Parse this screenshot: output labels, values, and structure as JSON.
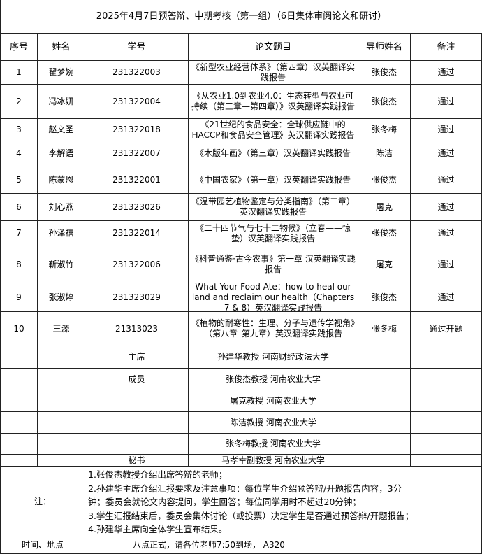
{
  "title": "2025年4月7日预答辩、中期考核（第一组）（6日集体审阅论文和研讨）",
  "header": [
    "序号",
    "姓名",
    "学号",
    "论文题目",
    "导师姓名",
    "备注"
  ],
  "rows": [
    [
      "1",
      "翟梦婉",
      "231322003",
      "《新型农业经营体系》（第四章）汉英翻译实践报告",
      "张俊杰",
      "通过"
    ],
    [
      "2",
      "冯冰妍",
      "231322004",
      "《从农业1.0到农业4.0：生态转型与农业可持续（第三章—第四章）》汉英翻译实践报告",
      "张俊杰",
      "通过"
    ],
    [
      "3",
      "赵文圣",
      "231322018",
      "《21世纪的食品安全：全球供应链中的HACCP和食品安全管理》英汉翻译实践报告",
      "张冬梅",
      "通过"
    ],
    [
      "4",
      "李解语",
      "231322007",
      "《木版年画》（第三章）汉英翻译实践报告",
      "陈洁",
      "通过"
    ],
    [
      "5",
      "陈蒙恩",
      "231322001",
      "《中国农家》（第一章）汉英翻译实践报告",
      "张俊杰",
      "通过"
    ],
    [
      "6",
      "刘心燕",
      "231323026",
      "《温带园艺植物鉴定与分类指南》（第二章）英汉翻译实践报告",
      "屠克",
      "通过"
    ],
    [
      "7",
      "孙泽禧",
      "231322014",
      "《二十四节气与七十二物候》（立春——惊蛰）汉英翻译实践报告",
      "张俊杰",
      "通过"
    ],
    [
      "8",
      "靳淑竹",
      "231322006",
      "《科普通鉴·古今农事》第一章 汉英翻译实践报告",
      "屠克",
      "通过"
    ],
    [
      "9",
      "张淑婷",
      "231323029",
      "What Your Food Ate：how to heal our land and reclaim our health（Chapters 7 & 8）英汉翻译实践报告",
      "张俊杰",
      "通过"
    ],
    [
      "10",
      "王源",
      "21313023",
      "《植物的耐寒性：生理、分子与遗传学视角》（第八章–第九章）英汉翻译实践报告",
      "张冬梅",
      "通过开题"
    ]
  ],
  "committee": {
    "chair_label": "主席",
    "chair": "孙建华教授 河南财经政法大学",
    "members_label": "成员",
    "members": [
      "张俊杰教授 河南农业大学",
      "屠克教授  河南农业大学",
      "陈洁教授  河南农业大学",
      "张冬梅教授  河南农业大学"
    ],
    "secretary_label": "秘书",
    "secretary": "马孝幸副教授 河南农业大学"
  },
  "notes_label": "注：",
  "notes": [
    "1.张俊杰教授介绍出席答辩的老师；",
    "2.孙建华主席介绍汇报要求及注意事项：每位学生介绍预答辩/开题报告内容，3分",
    "钟；委员会就论文内容提问，学生回答；每位同学用时不超过20分钟；",
    "3.学生汇报结束后，委员会集体讨论（或投票）决定学生是否通过预答辩/开题报告；",
    "4.孙建华主席向全体学生宣布结果。"
  ],
  "time_label": "时间、地点",
  "time": "八点正式，请各位老师7:50到场， A320"
}
